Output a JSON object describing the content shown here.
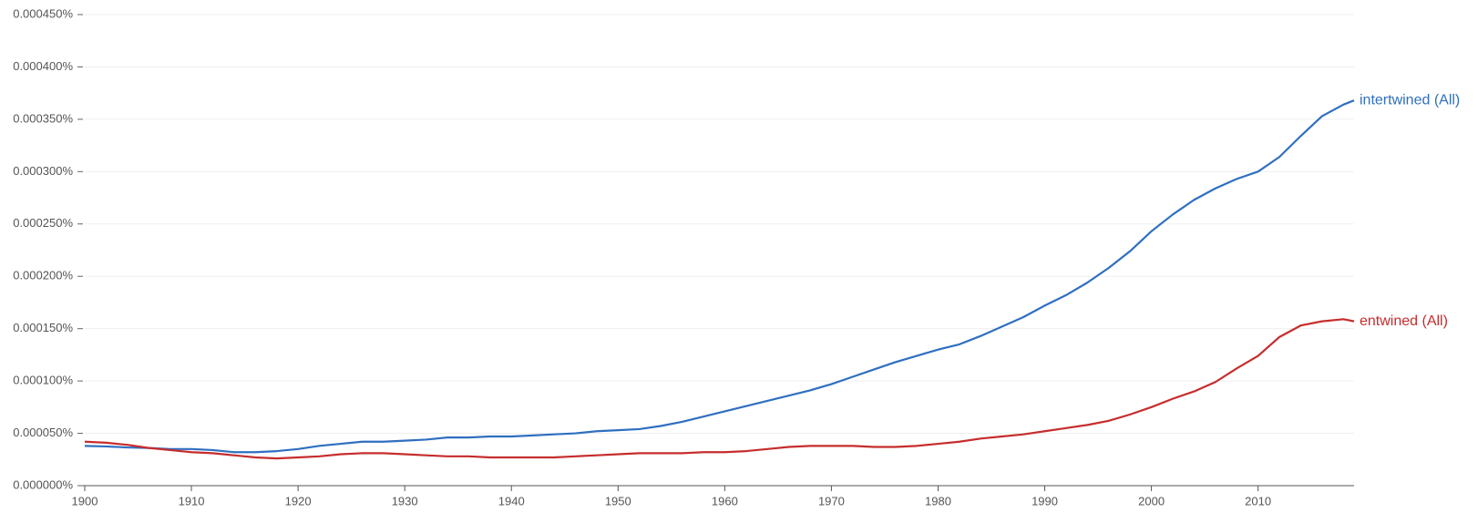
{
  "chart_data": {
    "type": "line",
    "x": [
      1900,
      1902,
      1904,
      1906,
      1908,
      1910,
      1912,
      1914,
      1916,
      1918,
      1920,
      1922,
      1924,
      1926,
      1928,
      1930,
      1932,
      1934,
      1936,
      1938,
      1940,
      1942,
      1944,
      1946,
      1948,
      1950,
      1952,
      1954,
      1956,
      1958,
      1960,
      1962,
      1964,
      1966,
      1968,
      1970,
      1972,
      1974,
      1976,
      1978,
      1980,
      1982,
      1984,
      1986,
      1988,
      1990,
      1992,
      1994,
      1996,
      1998,
      2000,
      2002,
      2004,
      2006,
      2008,
      2010,
      2012,
      2014,
      2016,
      2018,
      2019
    ],
    "series": [
      {
        "name": "intertwined (All)",
        "color": "#2f6fc0",
        "values": [
          3.8e-05,
          3.75e-05,
          3.65e-05,
          3.6e-05,
          3.5e-05,
          3.5e-05,
          3.4e-05,
          3.2e-05,
          3.2e-05,
          3.3e-05,
          3.5e-05,
          3.8e-05,
          4e-05,
          4.2e-05,
          4.2e-05,
          4.3e-05,
          4.4e-05,
          4.6e-05,
          4.6e-05,
          4.7e-05,
          4.7e-05,
          4.8e-05,
          4.9e-05,
          5e-05,
          5.2e-05,
          5.3e-05,
          5.4e-05,
          5.7e-05,
          6.1e-05,
          6.6e-05,
          7.1e-05,
          7.6e-05,
          8.1e-05,
          8.6e-05,
          9.1e-05,
          9.7e-05,
          0.000104,
          0.000111,
          0.000118,
          0.000124,
          0.00013,
          0.000135,
          0.000143,
          0.000152,
          0.000161,
          0.000172,
          0.000182,
          0.000194,
          0.000208,
          0.000224,
          0.000243,
          0.000259,
          0.000273,
          0.000284,
          0.000293,
          0.0003,
          0.000314,
          0.000334,
          0.000353,
          0.000364,
          0.000368
        ]
      },
      {
        "name": "entwined (All)",
        "color": "#c62d2d",
        "values": [
          4.2e-05,
          4.1e-05,
          3.9e-05,
          3.6e-05,
          3.4e-05,
          3.2e-05,
          3.1e-05,
          2.9e-05,
          2.7e-05,
          2.6e-05,
          2.7e-05,
          2.8e-05,
          3e-05,
          3.1e-05,
          3.1e-05,
          3e-05,
          2.9e-05,
          2.8e-05,
          2.8e-05,
          2.7e-05,
          2.7e-05,
          2.7e-05,
          2.7e-05,
          2.8e-05,
          2.9e-05,
          3e-05,
          3.1e-05,
          3.1e-05,
          3.1e-05,
          3.2e-05,
          3.2e-05,
          3.3e-05,
          3.5e-05,
          3.7e-05,
          3.8e-05,
          3.8e-05,
          3.8e-05,
          3.7e-05,
          3.7e-05,
          3.8e-05,
          4e-05,
          4.2e-05,
          4.5e-05,
          4.7e-05,
          4.9e-05,
          5.2e-05,
          5.5e-05,
          5.8e-05,
          6.2e-05,
          6.8e-05,
          7.5e-05,
          8.3e-05,
          9e-05,
          9.9e-05,
          0.000112,
          0.000124,
          0.000142,
          0.000153,
          0.000157,
          0.000159,
          0.000157
        ]
      }
    ],
    "xlim": [
      1900,
      2019
    ],
    "xticks": [
      1900,
      1910,
      1920,
      1930,
      1940,
      1950,
      1960,
      1970,
      1980,
      1990,
      2000,
      2010
    ],
    "ylim": [
      0,
      0.00045
    ],
    "yticks": [
      {
        "value": 0,
        "label": "0.000000%"
      },
      {
        "value": 5e-05,
        "label": "0.000050%"
      },
      {
        "value": 0.0001,
        "label": "0.000100%"
      },
      {
        "value": 0.00015,
        "label": "0.000150%"
      },
      {
        "value": 0.0002,
        "label": "0.000200%"
      },
      {
        "value": 0.00025,
        "label": "0.000250%"
      },
      {
        "value": 0.0003,
        "label": "0.000300%"
      },
      {
        "value": 0.00035,
        "label": "0.000350%"
      },
      {
        "value": 0.0004,
        "label": "0.000400%"
      },
      {
        "value": 0.00045,
        "label": "0.000450%"
      }
    ],
    "grid": true
  }
}
